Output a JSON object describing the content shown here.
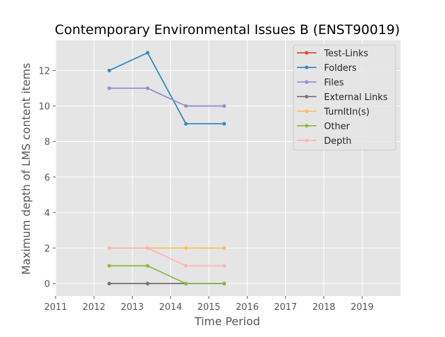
{
  "chart_data": {
    "type": "line",
    "title": "Contemporary Environmental Issues B (ENST90019)",
    "xlabel": "Time Period",
    "ylabel": "Maximum depth of LMS content items",
    "xlim": [
      2011,
      2020
    ],
    "ylim": [
      -0.7,
      13.7
    ],
    "x_ticks": [
      2011,
      2012,
      2013,
      2014,
      2015,
      2016,
      2017,
      2018,
      2019
    ],
    "y_ticks": [
      0,
      2,
      4,
      6,
      8,
      10,
      12
    ],
    "grid": true,
    "legend_position": "top-right",
    "x": [
      2012.4,
      2013.4,
      2014.4,
      2015.4
    ],
    "series": [
      {
        "name": "Test-Links",
        "color": "#e24a33",
        "values": [
          0,
          0,
          0,
          0
        ]
      },
      {
        "name": "Folders",
        "color": "#348abd",
        "values": [
          12,
          13,
          9,
          9
        ]
      },
      {
        "name": "Files",
        "color": "#988ed5",
        "values": [
          11,
          11,
          10,
          10
        ]
      },
      {
        "name": "External Links",
        "color": "#777777",
        "values": [
          0,
          0,
          0,
          0
        ]
      },
      {
        "name": "TurnItIn(s)",
        "color": "#fbc15e",
        "values": [
          2,
          2,
          2,
          2
        ]
      },
      {
        "name": "Other",
        "color": "#8eba42",
        "values": [
          1,
          1,
          0,
          0
        ]
      },
      {
        "name": "Depth",
        "color": "#ffb5b8",
        "values": [
          2,
          2,
          1,
          1
        ]
      }
    ]
  }
}
